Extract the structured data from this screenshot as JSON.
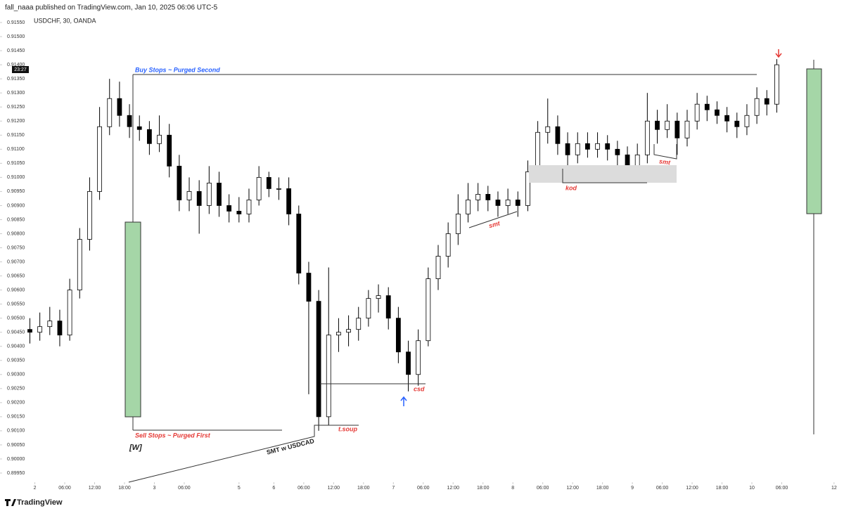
{
  "header": "fall_naaa published on TradingView.com, Jan 10, 2025 06:06 UTC-5",
  "footer": "TradingView",
  "chart_data": {
    "type": "candlestick",
    "title": "USDCHF, 30, OANDA",
    "x": [
      -2,
      2,
      6,
      10,
      14,
      18,
      22,
      26,
      30,
      34,
      38,
      42,
      46,
      50,
      54,
      58,
      62,
      66,
      70,
      74,
      78,
      82,
      86,
      90,
      94,
      98,
      102,
      106,
      110,
      114,
      118,
      122,
      126,
      130,
      134,
      138,
      142,
      146,
      150,
      154,
      158,
      162,
      166,
      170,
      174,
      178,
      182,
      186,
      190,
      194,
      198,
      202,
      206,
      210,
      214,
      218,
      222,
      226,
      230,
      234,
      238,
      242,
      246,
      250,
      254,
      258,
      262,
      266,
      270,
      274,
      278,
      282,
      286,
      290,
      294,
      298
    ],
    "open": [
      0.9046,
      0.9045,
      0.9047,
      0.9049,
      0.9044,
      0.906,
      0.9078,
      0.9095,
      0.9118,
      0.9128,
      0.9122,
      0.9118,
      0.9117,
      0.9112,
      0.9115,
      0.9104,
      0.9092,
      0.9095,
      0.909,
      0.9098,
      0.909,
      0.9088,
      0.9087,
      0.9092,
      0.91,
      0.9096,
      0.9096,
      0.9087,
      0.9066,
      0.9056,
      0.9015,
      0.9044,
      0.9045,
      0.9046,
      0.905,
      0.9057,
      0.9058,
      0.905,
      0.9038,
      0.903,
      0.9042,
      0.9064,
      0.9072,
      0.908,
      0.9087,
      0.9092,
      0.9094,
      0.9092,
      0.909,
      0.9092,
      0.909,
      0.9102,
      0.9116,
      0.9118,
      0.9112,
      0.9108,
      0.9112,
      0.911,
      0.9112,
      0.911,
      0.9108,
      0.9104,
      0.9108,
      0.912,
      0.9117,
      0.912,
      0.9114,
      0.912,
      0.9126,
      0.9124,
      0.9122,
      0.912,
      0.9118,
      0.9122,
      0.9128,
      0.9126
    ],
    "high": [
      0.905,
      0.9052,
      0.9054,
      0.9053,
      0.9064,
      0.9082,
      0.91,
      0.9125,
      0.9135,
      0.9134,
      0.9126,
      0.9122,
      0.912,
      0.9122,
      0.9119,
      0.9108,
      0.91,
      0.9099,
      0.9104,
      0.9102,
      0.9094,
      0.9093,
      0.9096,
      0.9104,
      0.9102,
      0.91,
      0.91,
      0.909,
      0.907,
      0.906,
      0.9068,
      0.905,
      0.9051,
      0.9054,
      0.906,
      0.9062,
      0.9061,
      0.9054,
      0.9042,
      0.9046,
      0.9068,
      0.9076,
      0.9084,
      0.9094,
      0.9098,
      0.9098,
      0.9097,
      0.9095,
      0.9096,
      0.9095,
      0.9106,
      0.912,
      0.9128,
      0.9122,
      0.9116,
      0.9116,
      0.9116,
      0.9116,
      0.9115,
      0.9113,
      0.9111,
      0.9112,
      0.913,
      0.9124,
      0.9126,
      0.9123,
      0.9124,
      0.913,
      0.9129,
      0.9127,
      0.9125,
      0.9123,
      0.9126,
      0.9132,
      0.9131,
      0.9142
    ],
    "low": [
      0.9041,
      0.9042,
      0.9044,
      0.904,
      0.9042,
      0.9057,
      0.9074,
      0.9092,
      0.9115,
      0.9118,
      0.9114,
      0.9113,
      0.9108,
      0.9109,
      0.91,
      0.9088,
      0.9088,
      0.908,
      0.9087,
      0.9086,
      0.9084,
      0.9084,
      0.9084,
      0.909,
      0.9093,
      0.9092,
      0.9083,
      0.9062,
      0.9023,
      0.901,
      0.9012,
      0.9038,
      0.904,
      0.9042,
      0.9047,
      0.9052,
      0.9046,
      0.9034,
      0.9024,
      0.9026,
      0.904,
      0.906,
      0.9068,
      0.9076,
      0.9084,
      0.9088,
      0.9088,
      0.9086,
      0.9087,
      0.9086,
      0.9088,
      0.91,
      0.9112,
      0.9108,
      0.91,
      0.9105,
      0.9107,
      0.9107,
      0.9106,
      0.9103,
      0.9098,
      0.9101,
      0.9105,
      0.9112,
      0.9114,
      0.9108,
      0.9111,
      0.9117,
      0.912,
      0.9119,
      0.9116,
      0.9114,
      0.9115,
      0.9119,
      0.9122,
      0.9123
    ],
    "close": [
      0.9045,
      0.9047,
      0.9049,
      0.9044,
      0.906,
      0.9078,
      0.9095,
      0.9118,
      0.9128,
      0.9122,
      0.9118,
      0.9117,
      0.9112,
      0.9115,
      0.9104,
      0.9092,
      0.9095,
      0.909,
      0.9098,
      0.909,
      0.9088,
      0.9087,
      0.9092,
      0.91,
      0.9096,
      0.9096,
      0.9087,
      0.9066,
      0.9056,
      0.9015,
      0.9044,
      0.9045,
      0.9046,
      0.905,
      0.9057,
      0.9058,
      0.905,
      0.9038,
      0.903,
      0.9042,
      0.9064,
      0.9072,
      0.908,
      0.9087,
      0.9092,
      0.9094,
      0.9092,
      0.909,
      0.9092,
      0.909,
      0.9102,
      0.9116,
      0.9118,
      0.9112,
      0.9108,
      0.9112,
      0.911,
      0.9112,
      0.911,
      0.9108,
      0.9104,
      0.9108,
      0.912,
      0.9117,
      0.912,
      0.9114,
      0.912,
      0.9126,
      0.9124,
      0.9122,
      0.912,
      0.9118,
      0.9122,
      0.9128,
      0.9126,
      0.914
    ],
    "up_color": "#ffffff",
    "down_color": "#000000",
    "xlim": [
      -14,
      325
    ],
    "xticks": [
      {
        "value": 0,
        "label": "2"
      },
      {
        "value": 12,
        "label": "06:00"
      },
      {
        "value": 24,
        "label": "12:00"
      },
      {
        "value": 36,
        "label": "18:00"
      },
      {
        "value": 48,
        "label": "3"
      },
      {
        "value": 60,
        "label": "06:00"
      },
      {
        "value": 82,
        "label": "5"
      },
      {
        "value": 96,
        "label": "6"
      },
      {
        "value": 108,
        "label": "06:00"
      },
      {
        "value": 120,
        "label": "12:00"
      },
      {
        "value": 132,
        "label": "18:00"
      },
      {
        "value": 144,
        "label": "7"
      },
      {
        "value": 156,
        "label": "06:00"
      },
      {
        "value": 168,
        "label": "12:00"
      },
      {
        "value": 180,
        "label": "18:00"
      },
      {
        "value": 192,
        "label": "8"
      },
      {
        "value": 204,
        "label": "06:00"
      },
      {
        "value": 216,
        "label": "12:00"
      },
      {
        "value": 228,
        "label": "18:00"
      },
      {
        "value": 240,
        "label": "9"
      },
      {
        "value": 252,
        "label": "06:00"
      },
      {
        "value": 264,
        "label": "12:00"
      },
      {
        "value": 276,
        "label": "18:00"
      },
      {
        "value": 288,
        "label": "10"
      },
      {
        "value": 300,
        "label": "06:00"
      },
      {
        "value": 321,
        "label": "12"
      }
    ],
    "ylim": [
      0.8992,
      0.9163
    ],
    "yticks": [
      {
        "value": 0.9155,
        "label": "0.91550"
      },
      {
        "value": 0.915,
        "label": "0.91500"
      },
      {
        "value": 0.9145,
        "label": "0.91450"
      },
      {
        "value": 0.914,
        "label": "0.91400"
      },
      {
        "value": 0.9135,
        "label": "0.91350"
      },
      {
        "value": 0.913,
        "label": "0.91300"
      },
      {
        "value": 0.9125,
        "label": "0.91250"
      },
      {
        "value": 0.912,
        "label": "0.91200"
      },
      {
        "value": 0.9115,
        "label": "0.91150"
      },
      {
        "value": 0.911,
        "label": "0.91100"
      },
      {
        "value": 0.9105,
        "label": "0.91050"
      },
      {
        "value": 0.91,
        "label": "0.91000"
      },
      {
        "value": 0.9095,
        "label": "0.90950"
      },
      {
        "value": 0.909,
        "label": "0.90900"
      },
      {
        "value": 0.9085,
        "label": "0.90850"
      },
      {
        "value": 0.908,
        "label": "0.90800"
      },
      {
        "value": 0.9075,
        "label": "0.90750"
      },
      {
        "value": 0.907,
        "label": "0.90700"
      },
      {
        "value": 0.9065,
        "label": "0.90650"
      },
      {
        "value": 0.906,
        "label": "0.90600"
      },
      {
        "value": 0.9055,
        "label": "0.90550"
      },
      {
        "value": 0.905,
        "label": "0.90500"
      },
      {
        "value": 0.9045,
        "label": "0.90450"
      },
      {
        "value": 0.904,
        "label": "0.90400"
      },
      {
        "value": 0.9035,
        "label": "0.90350"
      },
      {
        "value": 0.903,
        "label": "0.90300"
      },
      {
        "value": 0.9025,
        "label": "0.90250"
      },
      {
        "value": 0.902,
        "label": "0.90200"
      },
      {
        "value": 0.9015,
        "label": "0.90150"
      },
      {
        "value": 0.901,
        "label": "0.90100"
      },
      {
        "value": 0.9005,
        "label": "0.90050"
      },
      {
        "value": 0.9,
        "label": "0.90000"
      },
      {
        "value": 0.8995,
        "label": "0.89950"
      }
    ],
    "price_tag": "23:27",
    "annotations": [
      "Buy Stops ~ Purged Second",
      "Sell Stops ~ Purged First",
      "[W]",
      "SMT w USDCAD",
      "t.soup",
      "csd",
      "smt",
      "kod",
      "smt"
    ]
  }
}
